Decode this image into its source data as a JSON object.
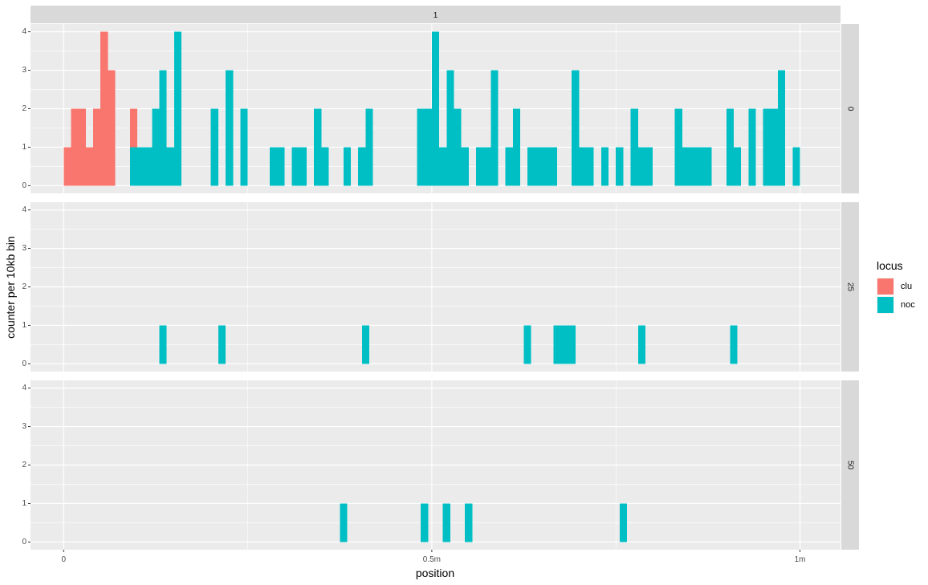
{
  "chart_data": {
    "type": "bar",
    "xlabel": "position",
    "ylabel": "counter per 10kb bin",
    "top_strip": "1",
    "bin_width": 10000,
    "xlim": [
      -45000,
      1055000
    ],
    "ylim": [
      -0.2,
      4.2
    ],
    "x_ticks": [
      {
        "value": 0,
        "label": "0"
      },
      {
        "value": 500000,
        "label": "0.5m"
      },
      {
        "value": 1000000,
        "label": "1m"
      }
    ],
    "y_ticks": [
      {
        "value": 0,
        "label": "0"
      },
      {
        "value": 1,
        "label": "1"
      },
      {
        "value": 2,
        "label": "2"
      },
      {
        "value": 3,
        "label": "3"
      },
      {
        "value": 4,
        "label": "4"
      }
    ],
    "legend": {
      "title": "locus",
      "position": "right",
      "entries": [
        {
          "name": "clu",
          "color": "#F8766D"
        },
        {
          "name": "noc",
          "color": "#00BFC4"
        }
      ]
    },
    "panels": [
      {
        "label": "0",
        "series": [
          {
            "name": "clu",
            "bins": [
              [
                5000,
                1
              ],
              [
                15000,
                2
              ],
              [
                25000,
                2
              ],
              [
                35000,
                1
              ],
              [
                45000,
                2
              ],
              [
                55000,
                4
              ],
              [
                65000,
                3
              ],
              [
                95000,
                2
              ]
            ]
          },
          {
            "name": "noc",
            "bins": [
              [
                95000,
                1
              ],
              [
                105000,
                1
              ],
              [
                115000,
                1
              ],
              [
                125000,
                2
              ],
              [
                135000,
                3
              ],
              [
                145000,
                1
              ],
              [
                155000,
                4
              ],
              [
                205000,
                2
              ],
              [
                225000,
                3
              ],
              [
                245000,
                2
              ],
              [
                285000,
                1
              ],
              [
                295000,
                1
              ],
              [
                315000,
                1
              ],
              [
                325000,
                1
              ],
              [
                345000,
                2
              ],
              [
                355000,
                1
              ],
              [
                385000,
                1
              ],
              [
                405000,
                1
              ],
              [
                415000,
                2
              ],
              [
                485000,
                2
              ],
              [
                495000,
                2
              ],
              [
                505000,
                4
              ],
              [
                515000,
                1
              ],
              [
                525000,
                3
              ],
              [
                535000,
                2
              ],
              [
                545000,
                1
              ],
              [
                565000,
                1
              ],
              [
                575000,
                1
              ],
              [
                585000,
                3
              ],
              [
                605000,
                1
              ],
              [
                615000,
                2
              ],
              [
                635000,
                1
              ],
              [
                645000,
                1
              ],
              [
                655000,
                1
              ],
              [
                665000,
                1
              ],
              [
                695000,
                3
              ],
              [
                705000,
                1
              ],
              [
                715000,
                1
              ],
              [
                735000,
                1
              ],
              [
                755000,
                1
              ],
              [
                775000,
                2
              ],
              [
                785000,
                1
              ],
              [
                795000,
                1
              ],
              [
                835000,
                2
              ],
              [
                845000,
                1
              ],
              [
                855000,
                1
              ],
              [
                865000,
                1
              ],
              [
                875000,
                1
              ],
              [
                905000,
                2
              ],
              [
                915000,
                1
              ],
              [
                935000,
                2
              ],
              [
                955000,
                2
              ],
              [
                965000,
                2
              ],
              [
                975000,
                3
              ],
              [
                995000,
                1
              ]
            ]
          }
        ]
      },
      {
        "label": "25",
        "series": [
          {
            "name": "noc",
            "bins": [
              [
                135000,
                1
              ],
              [
                215000,
                1
              ],
              [
                410000,
                1
              ],
              [
                630000,
                1
              ],
              [
                670000,
                1
              ],
              [
                680000,
                1
              ],
              [
                690000,
                1
              ],
              [
                785000,
                1
              ],
              [
                910000,
                1
              ]
            ]
          }
        ]
      },
      {
        "label": "50",
        "series": [
          {
            "name": "noc",
            "bins": [
              [
                380000,
                1
              ],
              [
                490000,
                1
              ],
              [
                520000,
                1
              ],
              [
                550000,
                1
              ],
              [
                760000,
                1
              ]
            ]
          }
        ]
      }
    ]
  }
}
